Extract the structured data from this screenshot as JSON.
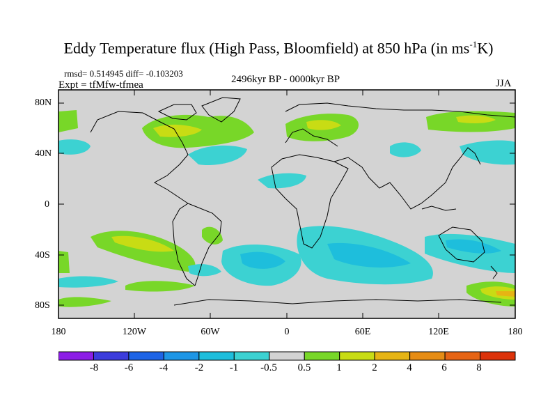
{
  "title": {
    "main": "Eddy Temperature flux (High Pass, Bloomfield) at 850 hPa (in ms",
    "superscript": "-1",
    "suffix": "K)"
  },
  "stats": "rmsd= 0.514945 diff= -0.103203",
  "experiment": "Expt = tfMfw-tfmea",
  "period": "2496kyr BP - 0000kyr BP",
  "season": "JJA",
  "map": {
    "lat_labels": [
      "80N",
      "40N",
      "0",
      "40S",
      "80S"
    ],
    "lon_labels": [
      "180",
      "120W",
      "60W",
      "0",
      "60E",
      "120E",
      "180"
    ],
    "background_color": "#d3d3d3"
  },
  "colorbar": {
    "labels": [
      "-8",
      "-6",
      "-4",
      "-2",
      "-1",
      "-0.5",
      "0.5",
      "1",
      "2",
      "4",
      "6",
      "8"
    ],
    "colors": [
      "#8c1ee6",
      "#3c3cdc",
      "#1e64e6",
      "#1e96e6",
      "#1ebedc",
      "#3cd2d2",
      "#d3d3d3",
      "#78d728",
      "#c8dc14",
      "#e6b414",
      "#e68c14",
      "#e66414",
      "#dc320a"
    ]
  }
}
